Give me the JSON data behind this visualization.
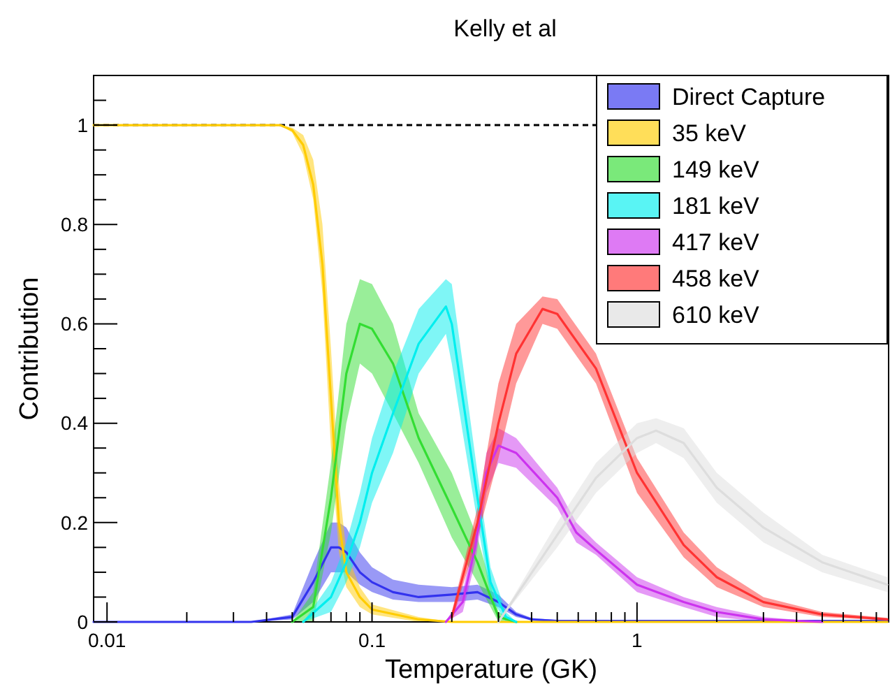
{
  "chart_data": {
    "type": "line",
    "title": "Kelly et al",
    "xlabel": "Temperature (GK)",
    "ylabel": "Contribution",
    "log": "x",
    "grid": false,
    "legend": "top right",
    "xlim": [
      0.0089,
      8.9
    ],
    "ylim": [
      0,
      1.1
    ],
    "xticks": [
      0.01,
      {
        "value": 0.02,
        "label": null
      },
      {
        "value": 0.03,
        "label": null
      },
      {
        "value": 0.04,
        "label": null
      },
      {
        "value": 0.05,
        "label": null
      },
      {
        "value": 0.06,
        "label": null
      },
      {
        "value": 0.07,
        "label": null
      },
      {
        "value": 0.08,
        "label": null
      },
      {
        "value": 0.09,
        "label": null
      },
      0.1,
      {
        "value": 0.2,
        "label": null
      },
      {
        "value": 0.3,
        "label": null
      },
      {
        "value": 0.4,
        "label": null
      },
      {
        "value": 0.5,
        "label": null
      },
      {
        "value": 0.6,
        "label": null
      },
      {
        "value": 0.7,
        "label": null
      },
      {
        "value": 0.8,
        "label": null
      },
      {
        "value": 0.9,
        "label": null
      },
      1,
      {
        "value": 2,
        "label": null
      },
      {
        "value": 3,
        "label": null
      },
      {
        "value": 4,
        "label": null
      },
      {
        "value": 5,
        "label": null
      },
      {
        "value": 6,
        "label": null
      },
      {
        "value": 7,
        "label": null
      },
      {
        "value": 8,
        "label": null
      }
    ],
    "yticks": [
      0,
      {
        "value": 0.05,
        "label": null
      },
      {
        "value": 0.1,
        "label": null
      },
      {
        "value": 0.15,
        "label": null
      },
      0.2,
      {
        "value": 0.25,
        "label": null
      },
      {
        "value": 0.3,
        "label": null
      },
      {
        "value": 0.35,
        "label": null
      },
      0.4,
      {
        "value": 0.45,
        "label": null
      },
      {
        "value": 0.5,
        "label": null
      },
      {
        "value": 0.55,
        "label": null
      },
      0.6,
      {
        "value": 0.65,
        "label": null
      },
      {
        "value": 0.7,
        "label": null
      },
      {
        "value": 0.75,
        "label": null
      },
      0.8,
      {
        "value": 0.85,
        "label": null
      },
      {
        "value": 0.9,
        "label": null
      },
      {
        "value": 0.95,
        "label": null
      },
      1,
      {
        "value": 1.05,
        "label": null
      }
    ],
    "ref_lines": [
      {
        "axis": "y",
        "value": 1,
        "color": "#000000",
        "line_style": "dashed"
      }
    ],
    "series": [
      {
        "name": "Direct Capture",
        "color": "#3333ee",
        "x": [
          0.0089,
          0.035,
          0.05,
          0.06,
          0.07,
          0.075,
          0.08,
          0.09,
          0.1,
          0.12,
          0.15,
          0.2,
          0.25,
          0.3,
          0.35,
          0.4,
          0.5,
          8.8
        ],
        "values": [
          0,
          0,
          0.01,
          0.08,
          0.15,
          0.15,
          0.14,
          0.1,
          0.08,
          0.06,
          0.05,
          0.055,
          0.06,
          0.04,
          0.015,
          0.005,
          0.002,
          0.002
        ],
        "lower": [
          0,
          0,
          0.005,
          0.04,
          0.1,
          0.1,
          0.1,
          0.075,
          0.06,
          0.045,
          0.04,
          0.04,
          0.045,
          0.03,
          0.01,
          0.003,
          0,
          0
        ],
        "upper": [
          0,
          0,
          0.015,
          0.12,
          0.2,
          0.2,
          0.19,
          0.14,
          0.11,
          0.085,
          0.075,
          0.07,
          0.075,
          0.055,
          0.02,
          0.008,
          0.004,
          0.004
        ]
      },
      {
        "name": "35 keV",
        "color": "#ffcc00",
        "x": [
          0.0089,
          0.03,
          0.045,
          0.05,
          0.055,
          0.06,
          0.065,
          0.07,
          0.075,
          0.08,
          0.09,
          0.1,
          0.15,
          0.2,
          0.5,
          1,
          8.8
        ],
        "values": [
          1,
          1,
          1,
          0.99,
          0.96,
          0.88,
          0.72,
          0.45,
          0.2,
          0.1,
          0.05,
          0.025,
          0.005,
          0,
          0,
          0,
          0
        ],
        "lower": [
          1,
          1,
          1,
          0.985,
          0.94,
          0.85,
          0.66,
          0.35,
          0.14,
          0.07,
          0.03,
          0.015,
          0,
          0,
          0,
          0,
          0
        ],
        "upper": [
          1,
          1,
          1,
          0.995,
          0.98,
          0.93,
          0.8,
          0.55,
          0.28,
          0.14,
          0.07,
          0.035,
          0.01,
          0,
          0,
          0,
          0
        ]
      },
      {
        "name": "149 keV",
        "color": "#33dd33",
        "x": [
          0.05,
          0.06,
          0.07,
          0.08,
          0.09,
          0.1,
          0.12,
          0.15,
          0.2,
          0.25,
          0.3,
          0.35
        ],
        "values": [
          0,
          0.03,
          0.25,
          0.5,
          0.6,
          0.59,
          0.52,
          0.37,
          0.23,
          0.12,
          0.01,
          0
        ],
        "lower": [
          0,
          0,
          0.18,
          0.4,
          0.52,
          0.5,
          0.42,
          0.32,
          0.17,
          0.08,
          0,
          0
        ],
        "upper": [
          0,
          0.06,
          0.32,
          0.6,
          0.69,
          0.68,
          0.6,
          0.42,
          0.3,
          0.17,
          0.02,
          0
        ]
      },
      {
        "name": "181 keV",
        "color": "#00eeee",
        "x": [
          0.055,
          0.07,
          0.08,
          0.09,
          0.1,
          0.12,
          0.15,
          0.19,
          0.2,
          0.22,
          0.25,
          0.28,
          0.32,
          0.35
        ],
        "values": [
          0,
          0.05,
          0.12,
          0.2,
          0.3,
          0.42,
          0.56,
          0.635,
          0.6,
          0.45,
          0.25,
          0.08,
          0.01,
          0
        ],
        "lower": [
          0,
          0.02,
          0.08,
          0.15,
          0.24,
          0.34,
          0.5,
          0.58,
          0.52,
          0.38,
          0.2,
          0.05,
          0,
          0
        ],
        "upper": [
          0,
          0.08,
          0.16,
          0.26,
          0.37,
          0.5,
          0.63,
          0.69,
          0.68,
          0.52,
          0.3,
          0.11,
          0.02,
          0
        ]
      },
      {
        "name": "417 keV",
        "color": "#cc33ee",
        "x": [
          0.19,
          0.22,
          0.245,
          0.27,
          0.3,
          0.35,
          0.5,
          0.59,
          0.7,
          1,
          1.5,
          2,
          3,
          5
        ],
        "values": [
          0,
          0.04,
          0.15,
          0.3,
          0.355,
          0.34,
          0.25,
          0.18,
          0.145,
          0.075,
          0.04,
          0.02,
          0.005,
          0
        ],
        "lower": [
          0,
          0.02,
          0.12,
          0.26,
          0.32,
          0.31,
          0.23,
          0.16,
          0.135,
          0.06,
          0.03,
          0.01,
          0,
          0
        ],
        "upper": [
          0,
          0.06,
          0.18,
          0.34,
          0.39,
          0.37,
          0.27,
          0.2,
          0.16,
          0.09,
          0.05,
          0.03,
          0.01,
          0
        ]
      },
      {
        "name": "458 keV",
        "color": "#ff3333",
        "x": [
          0.2,
          0.25,
          0.3,
          0.35,
          0.44,
          0.5,
          0.7,
          1,
          1.5,
          2,
          3,
          5,
          8.8
        ],
        "values": [
          0.01,
          0.2,
          0.4,
          0.54,
          0.63,
          0.62,
          0.51,
          0.3,
          0.155,
          0.09,
          0.04,
          0.015,
          0.005
        ],
        "lower": [
          0,
          0.17,
          0.33,
          0.48,
          0.6,
          0.59,
          0.48,
          0.26,
          0.13,
          0.07,
          0.03,
          0.01,
          0.003
        ],
        "upper": [
          0.02,
          0.23,
          0.48,
          0.6,
          0.655,
          0.65,
          0.54,
          0.33,
          0.18,
          0.11,
          0.05,
          0.02,
          0.008
        ]
      },
      {
        "name": "610 keV",
        "color": "#dddddd",
        "x": [
          0.3,
          0.5,
          0.7,
          1,
          1.18,
          1.5,
          2,
          3,
          5,
          8.8
        ],
        "values": [
          0,
          0.175,
          0.29,
          0.37,
          0.385,
          0.36,
          0.27,
          0.19,
          0.12,
          0.075
        ],
        "lower": [
          0,
          0.15,
          0.26,
          0.34,
          0.36,
          0.33,
          0.24,
          0.16,
          0.1,
          0.06
        ],
        "upper": [
          0,
          0.2,
          0.32,
          0.4,
          0.41,
          0.39,
          0.3,
          0.22,
          0.135,
          0.09
        ]
      }
    ]
  }
}
